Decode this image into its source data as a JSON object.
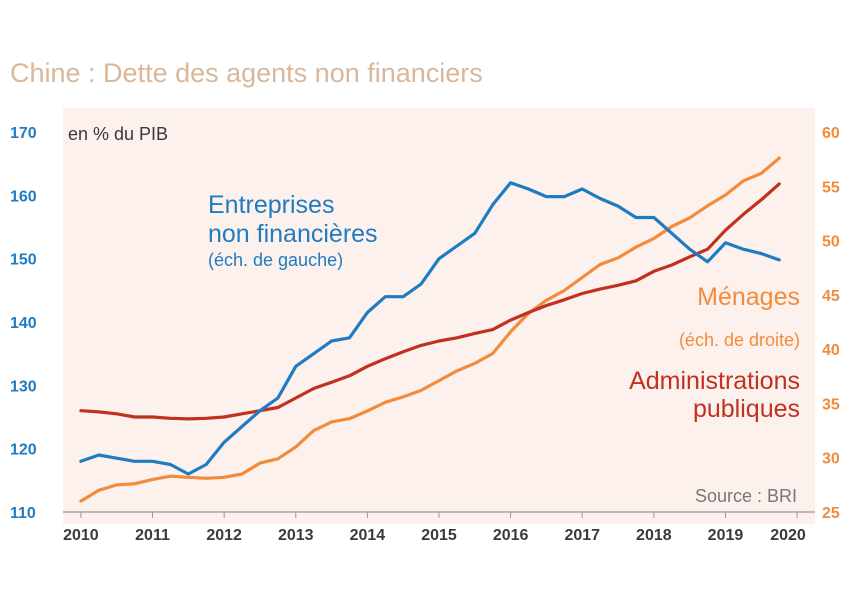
{
  "title": "Chine : Dette des agents non financiers",
  "chart_data": {
    "type": "line",
    "title": "Chine : Dette des agents non financiers",
    "unit_label": "en % du PIB",
    "source": "Source : BRI",
    "x_ticks": [
      "2010",
      "2011",
      "2012",
      "2013",
      "2014",
      "2015",
      "2016",
      "2017",
      "2018",
      "2019",
      "2020"
    ],
    "x_range": [
      2009.75,
      2020.25
    ],
    "y_left": {
      "range": [
        110,
        170
      ],
      "ticks": [
        110,
        120,
        130,
        140,
        150,
        160,
        170
      ],
      "color": "#1f7cc0"
    },
    "y_right": {
      "range": [
        25,
        60
      ],
      "ticks": [
        25,
        30,
        35,
        40,
        45,
        50,
        55,
        60
      ],
      "color": "#f28c3c"
    },
    "series": [
      {
        "name": "Entreprises non financières",
        "axis": "left",
        "color": "#1f7cc0",
        "label_lines": [
          "Entreprises",
          "non financières"
        ],
        "label_sub": "(éch. de gauche)",
        "x": [
          2010.0,
          2010.25,
          2010.5,
          2010.75,
          2011.0,
          2011.25,
          2011.5,
          2011.75,
          2012.0,
          2012.25,
          2012.5,
          2012.75,
          2013.0,
          2013.25,
          2013.5,
          2013.75,
          2014.0,
          2014.25,
          2014.5,
          2014.75,
          2015.0,
          2015.25,
          2015.5,
          2015.75,
          2016.0,
          2016.25,
          2016.5,
          2016.75,
          2017.0,
          2017.25,
          2017.5,
          2017.75,
          2018.0,
          2018.25,
          2018.5,
          2018.75,
          2019.0,
          2019.25,
          2019.5,
          2019.75
        ],
        "y": [
          118.0,
          119.0,
          118.5,
          118.0,
          118.0,
          117.5,
          116.0,
          117.5,
          121.0,
          123.5,
          126.0,
          128.0,
          133.0,
          135.0,
          137.0,
          137.5,
          141.5,
          144.0,
          144.0,
          146.0,
          150.0,
          152.0,
          154.0,
          158.5,
          162.0,
          161.0,
          159.8,
          159.8,
          161.0,
          159.5,
          158.3,
          156.5,
          156.5,
          154.0,
          151.5,
          149.5,
          152.5,
          151.5,
          150.8,
          149.8
        ]
      },
      {
        "name": "Ménages",
        "axis": "right",
        "color": "#f28c3c",
        "label_lines": [
          "Ménages"
        ],
        "label_sub": "(éch. de droite)",
        "x": [
          2010.0,
          2010.25,
          2010.5,
          2010.75,
          2011.0,
          2011.25,
          2011.5,
          2011.75,
          2012.0,
          2012.25,
          2012.5,
          2012.75,
          2013.0,
          2013.25,
          2013.5,
          2013.75,
          2014.0,
          2014.25,
          2014.5,
          2014.75,
          2015.0,
          2015.25,
          2015.5,
          2015.75,
          2016.0,
          2016.25,
          2016.5,
          2016.75,
          2017.0,
          2017.25,
          2017.5,
          2017.75,
          2018.0,
          2018.25,
          2018.5,
          2018.75,
          2019.0,
          2019.25,
          2019.5,
          2019.75
        ],
        "y": [
          26.0,
          27.0,
          27.5,
          27.6,
          28.0,
          28.3,
          28.2,
          28.1,
          28.2,
          28.5,
          29.5,
          29.9,
          31.0,
          32.5,
          33.3,
          33.6,
          34.3,
          35.1,
          35.6,
          36.2,
          37.1,
          38.0,
          38.7,
          39.6,
          41.6,
          43.3,
          44.5,
          45.4,
          46.6,
          47.8,
          48.4,
          49.4,
          50.2,
          51.3,
          52.1,
          53.2,
          54.2,
          55.5,
          56.2,
          57.6
        ]
      },
      {
        "name": "Administrations publiques",
        "axis": "left",
        "color": "#c0311f",
        "label_lines": [
          "Administrations",
          "publiques"
        ],
        "label_sub": "",
        "x": [
          2010.0,
          2010.25,
          2010.5,
          2010.75,
          2011.0,
          2011.25,
          2011.5,
          2011.75,
          2012.0,
          2012.25,
          2012.5,
          2012.75,
          2013.0,
          2013.25,
          2013.5,
          2013.75,
          2014.0,
          2014.25,
          2014.5,
          2014.75,
          2015.0,
          2015.25,
          2015.5,
          2015.75,
          2016.0,
          2016.25,
          2016.5,
          2016.75,
          2017.0,
          2017.25,
          2017.5,
          2017.75,
          2018.0,
          2018.25,
          2018.5,
          2018.75,
          2019.0,
          2019.25,
          2019.5,
          2019.75
        ],
        "y": [
          126.0,
          125.8,
          125.5,
          125.0,
          125.0,
          124.8,
          124.7,
          124.8,
          125.0,
          125.5,
          126.0,
          126.5,
          128.0,
          129.5,
          130.5,
          131.5,
          133.0,
          134.2,
          135.3,
          136.3,
          137.0,
          137.5,
          138.2,
          138.8,
          140.3,
          141.5,
          142.6,
          143.5,
          144.5,
          145.2,
          145.8,
          146.5,
          148.0,
          149.0,
          150.3,
          151.5,
          154.5,
          157.0,
          159.3,
          161.8
        ]
      }
    ]
  }
}
